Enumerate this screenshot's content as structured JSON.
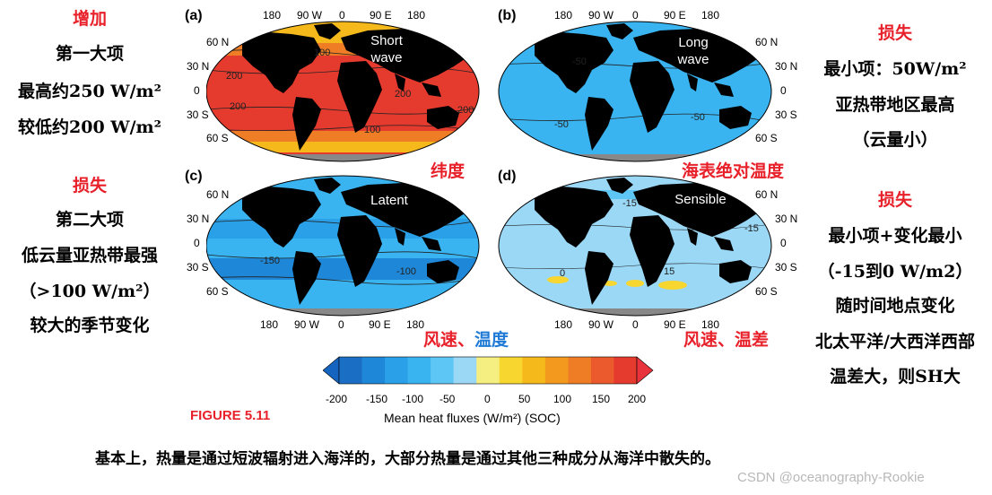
{
  "left_notes": {
    "gain_title": "增加",
    "gain_lines": [
      "第一大项",
      "最高约250 W/m²",
      "较低约200 W/m²"
    ],
    "loss_title": "损失",
    "loss_lines": [
      "第二大项",
      "低云量亚热带最强",
      "（>100 W/m²）",
      "较大的季节变化"
    ]
  },
  "right_notes": {
    "top_title": "损失",
    "top_lines": [
      "最小项：50W/m²",
      "亚热带地区最高",
      "（云量小）"
    ],
    "bottom_title": "损失",
    "bottom_lines": [
      "最小项+变化最小",
      "（-15到0 W/m2）",
      "随时间地点变化",
      "北太平洋/大西洋西部",
      "温差大，则SH大"
    ]
  },
  "annotations": {
    "latitude": "纬度",
    "sst": "海表绝对温度",
    "wind": "风速、",
    "temp": "温度",
    "wind_temp_diff": "风速、温差"
  },
  "panels": [
    {
      "letter": "(a)",
      "label_line1": "Short",
      "label_line2": "wave"
    },
    {
      "letter": "(b)",
      "label_line1": "Long",
      "label_line2": "wave"
    },
    {
      "letter": "(c)",
      "label_line1": "Latent",
      "label_line2": ""
    },
    {
      "letter": "(d)",
      "label_line1": "Sensible",
      "label_line2": ""
    }
  ],
  "lon_ticks": [
    "180",
    "90 W",
    "0",
    "90 E",
    "180"
  ],
  "lat_ticks": [
    "60 N",
    "30 N",
    "0",
    "30 S",
    "60 S"
  ],
  "contour_labels": {
    "a": [
      "100",
      "200",
      "200",
      "200",
      "200",
      "100"
    ],
    "b": [
      "-50",
      "-50",
      "-50"
    ],
    "c": [
      "-150",
      "-100"
    ],
    "d": [
      "-15",
      "0",
      "15",
      "-15"
    ]
  },
  "colorbar": {
    "ticks": [
      "-200",
      "-150",
      "-100",
      "-50",
      "0",
      "50",
      "100",
      "150",
      "200"
    ],
    "label": "Mean heat fluxes (W/m²) (SOC)",
    "colors": [
      "#1a6fc4",
      "#1e87d8",
      "#2aa0e8",
      "#39b4f0",
      "#5ec6f4",
      "#9ad8f6",
      "#f5ee80",
      "#f8d630",
      "#f6b91c",
      "#f39a1e",
      "#ef7d25",
      "#ea5a2c",
      "#e53a2e"
    ],
    "low_arrow": "#1565c0",
    "high_arrow": "#e8323c"
  },
  "figure_label": "FIGURE 5.11",
  "bottom_caption": "基本上，热量是通过短波辐射进入海洋的，大部分热量是通过其他三种成分从海洋中散失的。",
  "watermark": "CSDN @oceanography-Rookie"
}
